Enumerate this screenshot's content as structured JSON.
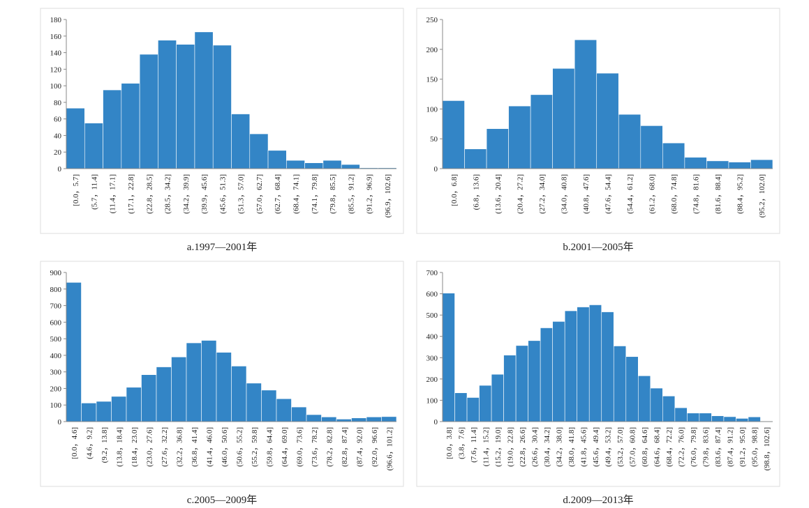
{
  "chart_data": [
    {
      "type": "bar",
      "title": "a.1997—2001年",
      "color": "#3385c6",
      "categories": [
        "[0.0，5.7]",
        "(5.7，11.4]",
        "(11.4，17.1]",
        "(17.1，22.8]",
        "(22.8，28.5]",
        "(28.5，34.2]",
        "(34.2，39.9]",
        "(39.9，45.6]",
        "(45.6，51.3]",
        "(51.3，57.0]",
        "(57.0，62.7]",
        "(62.7，68.4]",
        "(68.4，74.1]",
        "(74.1，79.8]",
        "(79.8，85.5]",
        "(85.5，91.2]",
        "(91.2，96.9]",
        "(96.9，102.6]"
      ],
      "values": [
        73,
        55,
        95,
        103,
        138,
        155,
        150,
        165,
        149,
        66,
        42,
        22,
        10,
        7,
        10,
        5,
        1,
        1
      ],
      "ylim": [
        0,
        180
      ],
      "yticks": [
        0,
        20,
        40,
        60,
        80,
        100,
        120,
        140,
        160,
        180
      ]
    },
    {
      "type": "bar",
      "title": "b.2001—2005年",
      "color": "#3385c6",
      "categories": [
        "[0.0，6.8]",
        "(6.8，13.6]",
        "(13.6，20.4]",
        "(20.4，27.2]",
        "(27.2，34.0]",
        "(34.0，40.8]",
        "(40.8，47.6]",
        "(47.6，54.4]",
        "(54.4，61.2]",
        "(61.2，68.0]",
        "(68.0，74.8]",
        "(74.8，81.6]",
        "(81.6，88.4]",
        "(88.4，95.2]",
        "(95.2，102.0]"
      ],
      "values": [
        114,
        33,
        67,
        105,
        124,
        168,
        216,
        160,
        91,
        72,
        43,
        19,
        13,
        11,
        15
      ],
      "ylim": [
        0,
        250
      ],
      "yticks": [
        0,
        50,
        100,
        150,
        200,
        250
      ]
    },
    {
      "type": "bar",
      "title": "c.2005—2009年",
      "color": "#3385c6",
      "categories": [
        "[0.0，4.6]",
        "(4.6，9.2]",
        "(9.2，13.8]",
        "(13.8，18.4]",
        "(18.4，23.0]",
        "(23.0，27.6]",
        "(27.6，32.2]",
        "(32.2，36.8]",
        "(36.8，41.4]",
        "(41.4，46.0]",
        "(46.0，50.6]",
        "(50.6，55.2]",
        "(55.2，59.8]",
        "(59.8，64.4]",
        "(64.4，69.0]",
        "(69.0，73.6]",
        "(73.6，78.2]",
        "(78.2，82.8]",
        "(82.8，87.4]",
        "(87.4，92.0]",
        "(92.0，96.6]",
        "(96.6，101.2]"
      ],
      "values": [
        840,
        112,
        122,
        152,
        207,
        283,
        330,
        390,
        475,
        490,
        418,
        335,
        232,
        190,
        138,
        88,
        42,
        28,
        15,
        22,
        28,
        30
      ],
      "ylim": [
        0,
        900
      ],
      "yticks": [
        0,
        100,
        200,
        300,
        400,
        500,
        600,
        700,
        800,
        900
      ]
    },
    {
      "type": "bar",
      "title": "d.2009—2013年",
      "color": "#3385c6",
      "categories": [
        "[0.0，3.8]",
        "(3.8，7.6]",
        "(7.6，11.4]",
        "(11.4，15.2]",
        "(15.2，19.0]",
        "(19.0，22.8]",
        "(22.8，26.6]",
        "(26.6，30.4]",
        "(30.4，34.2]",
        "(34.2，38.0]",
        "(38.0，41.8]",
        "(41.8，45.6]",
        "(45.6，49.4]",
        "(49.4，53.2]",
        "(53.2，57.0]",
        "(57.0，60.8]",
        "(60.8，64.6]",
        "(64.6，68.4]",
        "(68.4，72.2]",
        "(72.2，76.0]",
        "(76.0，79.8]",
        "(79.8，83.6]",
        "(83.6，87.4]",
        "(87.4，91.2]",
        "(91.2，95.0]",
        "(95.0，98.8]",
        "(98.8，102.6]"
      ],
      "values": [
        603,
        135,
        113,
        170,
        222,
        312,
        357,
        380,
        440,
        470,
        520,
        538,
        548,
        515,
        355,
        305,
        215,
        157,
        120,
        65,
        40,
        40,
        27,
        23,
        15,
        22,
        2
      ],
      "ylim": [
        0,
        700
      ],
      "yticks": [
        0,
        100,
        200,
        300,
        400,
        500,
        600,
        700
      ]
    }
  ]
}
